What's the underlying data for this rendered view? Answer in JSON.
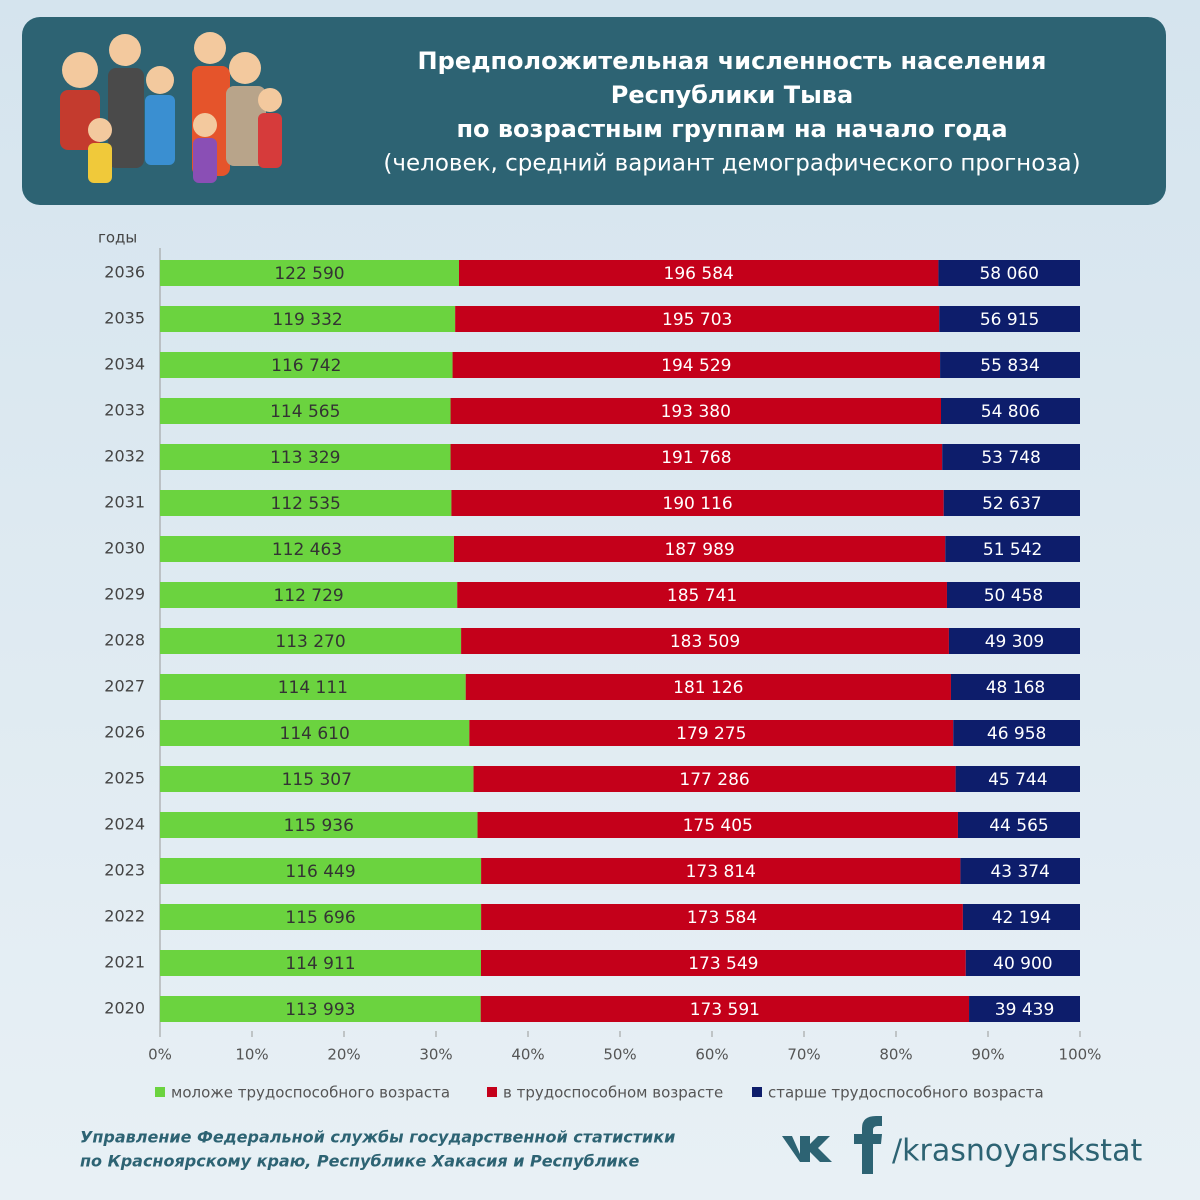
{
  "chart_data": {
    "type": "bar",
    "orientation": "horizontal",
    "stacked": "percent",
    "title_lines": [
      "Предположительная численность населения",
      "Республики Тыва",
      "по возрастным группам на начало года"
    ],
    "subtitle": "(человек, средний вариант демографического прогноза)",
    "y_axis_label": "годы",
    "categories": [
      "2036",
      "2035",
      "2034",
      "2033",
      "2032",
      "2031",
      "2030",
      "2029",
      "2028",
      "2027",
      "2026",
      "2025",
      "2024",
      "2023",
      "2022",
      "2021",
      "2020"
    ],
    "series": [
      {
        "name": "моложе трудоспособного возраста",
        "color": "#6bd33f",
        "values": [
          122590,
          119332,
          116742,
          114565,
          113329,
          112535,
          112463,
          112729,
          113270,
          114111,
          114610,
          115307,
          115936,
          116449,
          115696,
          114911,
          113993
        ],
        "value_labels": [
          "122 590",
          "119 332",
          "116 742",
          "114 565",
          "113 329",
          "112 535",
          "112 463",
          "112 729",
          "113 270",
          "114 111",
          "114 610",
          "115 307",
          "115 936",
          "116 449",
          "115 696",
          "114 911",
          "113 993"
        ]
      },
      {
        "name": "в трудоспособном возрасте",
        "color": "#c4001a",
        "values": [
          196584,
          195703,
          194529,
          193380,
          191768,
          190116,
          187989,
          185741,
          183509,
          181126,
          179275,
          177286,
          175405,
          173814,
          173584,
          173549,
          173591
        ],
        "value_labels": [
          "196 584",
          "195 703",
          "194 529",
          "193 380",
          "191 768",
          "190 116",
          "187 989",
          "185 741",
          "183 509",
          "181 126",
          "179 275",
          "177 286",
          "175 405",
          "173 814",
          "173 584",
          "173 549",
          "173 591"
        ]
      },
      {
        "name": "старше трудоспособного возраста",
        "color": "#0d1d6b",
        "values": [
          58060,
          56915,
          55834,
          54806,
          53748,
          52637,
          51542,
          50458,
          49309,
          48168,
          46958,
          45744,
          44565,
          43374,
          42194,
          40900,
          39439
        ],
        "value_labels": [
          "58 060",
          "56 915",
          "55 834",
          "54 806",
          "53 748",
          "52 637",
          "51 542",
          "50 458",
          "49 309",
          "48 168",
          "46 958",
          "45 744",
          "44 565",
          "43 374",
          "42 194",
          "40 900",
          "39 439"
        ]
      }
    ],
    "xlim": [
      0,
      100
    ],
    "xticks": [
      {
        "value": 0,
        "label": "0%"
      },
      {
        "value": 10,
        "label": "10%"
      },
      {
        "value": 20,
        "label": "20%"
      },
      {
        "value": 30,
        "label": "30%"
      },
      {
        "value": 40,
        "label": "40%"
      },
      {
        "value": 50,
        "label": "50%"
      },
      {
        "value": 60,
        "label": "60%"
      },
      {
        "value": 70,
        "label": "70%"
      },
      {
        "value": 80,
        "label": "80%"
      },
      {
        "value": 90,
        "label": "90%"
      },
      {
        "value": 100,
        "label": "100%"
      }
    ],
    "legend": "bottom"
  },
  "footer": {
    "lines": [
      "Управление Федеральной службы государственной статистики",
      "по Красноярскому краю, Республике Хакасия и Республике"
    ],
    "social": "/krasnoyarskstat"
  }
}
